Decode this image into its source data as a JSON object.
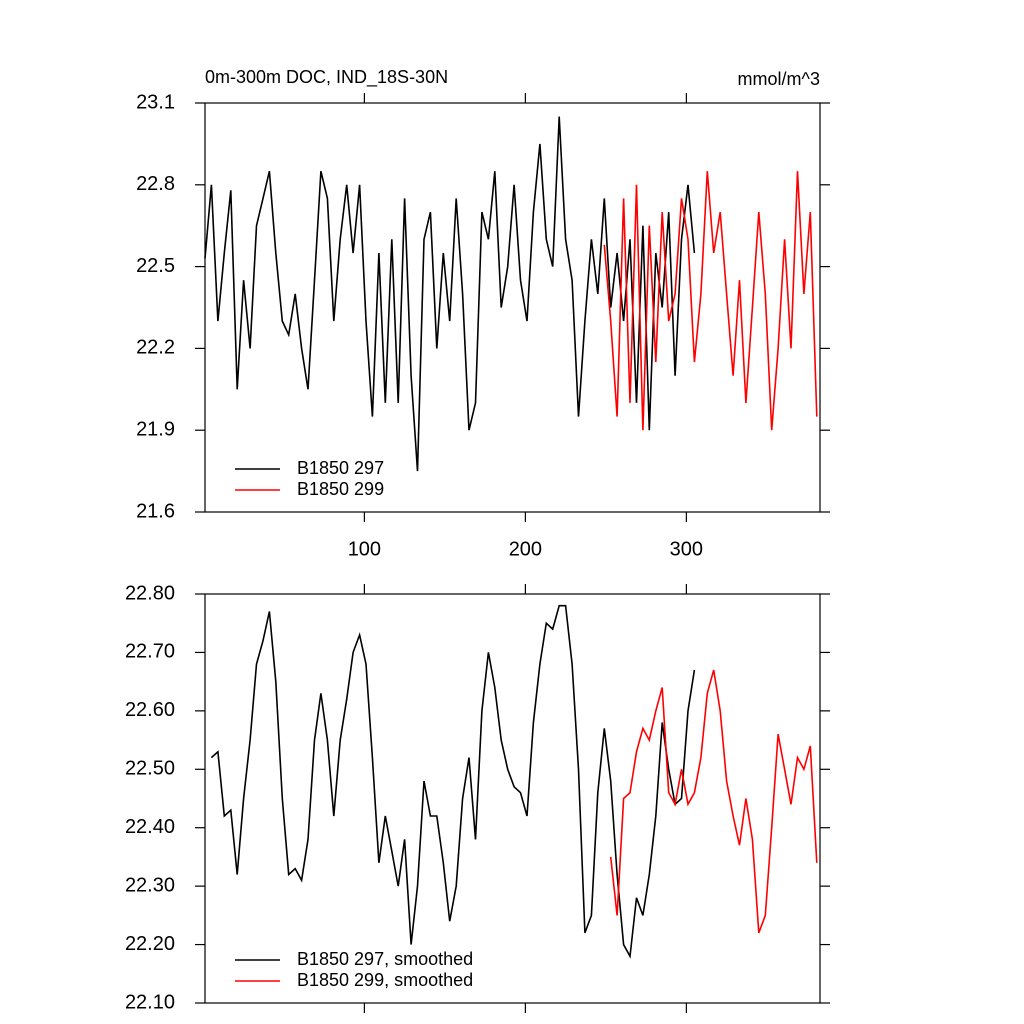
{
  "chart_data": [
    {
      "type": "line",
      "title": "0m-300m DOC, IND_18S-30N",
      "units": "mmol/m^3",
      "x": [
        1,
        5,
        9,
        13,
        17,
        21,
        25,
        29,
        33,
        37,
        41,
        45,
        49,
        53,
        57,
        61,
        65,
        69,
        73,
        77,
        81,
        85,
        89,
        93,
        97,
        101,
        105,
        109,
        113,
        117,
        121,
        125,
        129,
        133,
        137,
        141,
        145,
        149,
        153,
        157,
        161,
        165,
        169,
        173,
        177,
        181,
        185,
        189,
        193,
        197,
        201,
        205,
        209,
        213,
        217,
        221,
        225,
        229,
        233,
        237,
        241,
        245,
        249,
        253,
        257,
        261,
        265,
        269,
        273,
        277,
        281,
        285,
        289,
        293,
        297,
        301,
        305,
        309,
        313,
        317,
        321,
        325,
        329,
        333,
        337,
        341,
        345,
        349,
        353,
        357,
        361,
        365,
        369,
        373,
        377,
        381
      ],
      "series": [
        {
          "name": "B1850 297",
          "color": "#000000",
          "values": [
            22.53,
            22.8,
            22.3,
            22.55,
            22.78,
            22.05,
            22.45,
            22.2,
            22.65,
            22.75,
            22.85,
            22.55,
            22.3,
            22.25,
            22.4,
            22.2,
            22.05,
            22.45,
            22.85,
            22.75,
            22.3,
            22.6,
            22.8,
            22.55,
            22.8,
            22.3,
            21.95,
            22.55,
            22.0,
            22.6,
            22.0,
            22.75,
            22.1,
            21.75,
            22.6,
            22.7,
            22.2,
            22.55,
            22.3,
            22.75,
            22.4,
            21.9,
            22.0,
            22.7,
            22.6,
            22.85,
            22.35,
            22.5,
            22.8,
            22.45,
            22.3,
            22.7,
            22.95,
            22.6,
            22.5,
            23.05,
            22.6,
            22.45,
            21.95,
            22.3,
            22.6,
            22.4,
            22.75,
            22.35,
            22.55,
            22.3,
            22.6,
            22.0,
            22.65,
            21.9,
            22.55,
            22.35,
            22.7,
            22.1,
            22.6,
            22.8,
            22.55,
            null,
            null,
            null,
            null,
            null,
            null,
            null,
            null,
            null,
            null,
            null,
            null,
            null,
            null,
            null,
            null,
            null,
            null,
            null
          ]
        },
        {
          "name": "B1850 299",
          "color": "#ff0000",
          "values": [
            null,
            null,
            null,
            null,
            null,
            null,
            null,
            null,
            null,
            null,
            null,
            null,
            null,
            null,
            null,
            null,
            null,
            null,
            null,
            null,
            null,
            null,
            null,
            null,
            null,
            null,
            null,
            null,
            null,
            null,
            null,
            null,
            null,
            null,
            null,
            null,
            null,
            null,
            null,
            null,
            null,
            null,
            null,
            null,
            null,
            null,
            null,
            null,
            null,
            null,
            null,
            null,
            null,
            null,
            null,
            null,
            null,
            null,
            null,
            null,
            null,
            null,
            22.58,
            22.3,
            21.95,
            22.75,
            22.0,
            22.8,
            21.9,
            22.65,
            22.15,
            22.7,
            22.3,
            22.4,
            22.75,
            22.6,
            22.15,
            22.4,
            22.85,
            22.55,
            22.7,
            22.4,
            22.1,
            22.45,
            22.0,
            22.35,
            22.7,
            22.4,
            21.9,
            22.2,
            22.6,
            22.2,
            22.85,
            22.4,
            22.7,
            21.95
          ]
        }
      ],
      "xlim": [
        1,
        383
      ],
      "xticks": [
        100,
        200,
        300
      ],
      "xtick_labels": true,
      "ylim": [
        21.6,
        23.1
      ],
      "yticks": [
        21.6,
        21.9,
        22.2,
        22.5,
        22.8,
        23.1
      ],
      "legend": "lower left"
    },
    {
      "type": "line",
      "x": [
        1,
        5,
        9,
        13,
        17,
        21,
        25,
        29,
        33,
        37,
        41,
        45,
        49,
        53,
        57,
        61,
        65,
        69,
        73,
        77,
        81,
        85,
        89,
        93,
        97,
        101,
        105,
        109,
        113,
        117,
        121,
        125,
        129,
        133,
        137,
        141,
        145,
        149,
        153,
        157,
        161,
        165,
        169,
        173,
        177,
        181,
        185,
        189,
        193,
        197,
        201,
        205,
        209,
        213,
        217,
        221,
        225,
        229,
        233,
        237,
        241,
        245,
        249,
        253,
        257,
        261,
        265,
        269,
        273,
        277,
        281,
        285,
        289,
        293,
        297,
        301,
        305,
        309,
        313,
        317,
        321,
        325,
        329,
        333,
        337,
        341,
        345,
        349,
        353,
        357,
        361,
        365,
        369,
        373,
        377,
        381
      ],
      "series": [
        {
          "name": "B1850 297, smoothed",
          "color": "#000000",
          "values": [
            null,
            22.52,
            22.53,
            22.42,
            22.43,
            22.32,
            22.45,
            22.55,
            22.68,
            22.72,
            22.77,
            22.65,
            22.45,
            22.32,
            22.33,
            22.31,
            22.38,
            22.55,
            22.63,
            22.55,
            22.42,
            22.55,
            22.62,
            22.7,
            22.73,
            22.68,
            22.52,
            22.34,
            22.42,
            22.36,
            22.3,
            22.38,
            22.2,
            22.3,
            22.48,
            22.42,
            22.42,
            22.34,
            22.24,
            22.3,
            22.45,
            22.52,
            22.38,
            22.6,
            22.7,
            22.64,
            22.55,
            22.5,
            22.47,
            22.46,
            22.42,
            22.58,
            22.68,
            22.75,
            22.74,
            22.78,
            22.78,
            22.68,
            22.5,
            22.22,
            22.25,
            22.46,
            22.57,
            22.48,
            22.32,
            22.2,
            22.18,
            22.28,
            22.25,
            22.32,
            22.42,
            22.58,
            22.5,
            22.44,
            22.45,
            22.6,
            22.67,
            null,
            null,
            null,
            null,
            null,
            null,
            null,
            null,
            null,
            null,
            null,
            null,
            null,
            null,
            null,
            null,
            null,
            null,
            null
          ]
        },
        {
          "name": "B1850 299, smoothed",
          "color": "#ff0000",
          "values": [
            null,
            null,
            null,
            null,
            null,
            null,
            null,
            null,
            null,
            null,
            null,
            null,
            null,
            null,
            null,
            null,
            null,
            null,
            null,
            null,
            null,
            null,
            null,
            null,
            null,
            null,
            null,
            null,
            null,
            null,
            null,
            null,
            null,
            null,
            null,
            null,
            null,
            null,
            null,
            null,
            null,
            null,
            null,
            null,
            null,
            null,
            null,
            null,
            null,
            null,
            null,
            null,
            null,
            null,
            null,
            null,
            null,
            null,
            null,
            null,
            null,
            null,
            null,
            22.35,
            22.25,
            22.45,
            22.46,
            22.53,
            22.57,
            22.55,
            22.6,
            22.64,
            22.46,
            22.44,
            22.5,
            22.44,
            22.46,
            22.52,
            22.63,
            22.67,
            22.6,
            22.48,
            22.42,
            22.37,
            22.45,
            22.38,
            22.22,
            22.25,
            22.4,
            22.56,
            22.5,
            22.44,
            22.52,
            22.5,
            22.54,
            22.34
          ]
        }
      ],
      "xlim": [
        1,
        383
      ],
      "xticks": [
        100,
        200,
        300
      ],
      "xtick_labels": false,
      "ylim": [
        22.1,
        22.8
      ],
      "yticks": [
        {
          "value": 22.1,
          "label": "22.10"
        },
        {
          "value": 22.2,
          "label": "22.20"
        },
        {
          "value": 22.3,
          "label": "22.30"
        },
        {
          "value": 22.4,
          "label": "22.40"
        },
        {
          "value": 22.5,
          "label": "22.50"
        },
        {
          "value": 22.6,
          "label": "22.60"
        },
        {
          "value": 22.7,
          "label": "22.70"
        },
        {
          "value": 22.8,
          "label": "22.80"
        }
      ],
      "legend": "lower left"
    }
  ]
}
